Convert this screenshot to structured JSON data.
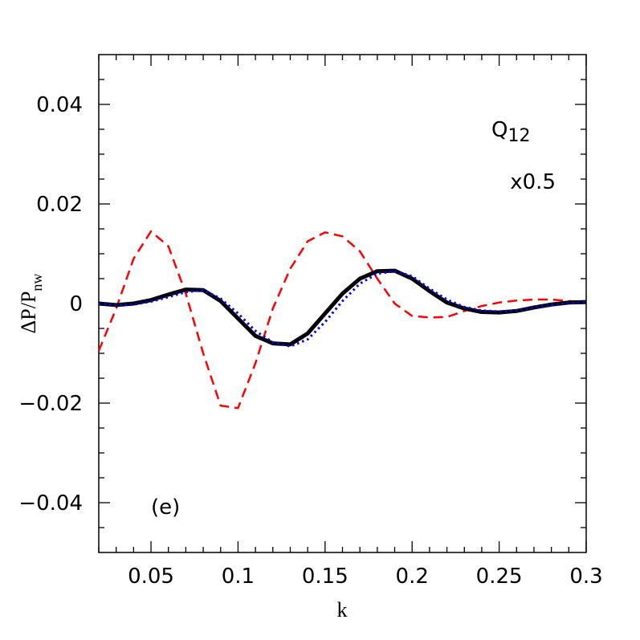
{
  "chart_data": {
    "type": "line",
    "xlabel": "k",
    "ylabel": {
      "main": "ΔP/P",
      "sub": "nw"
    },
    "annotations": {
      "q_main": "Q",
      "q_sub": "12",
      "scale": "x0.5",
      "panel": "(e)"
    },
    "xlim": [
      0.02,
      0.3
    ],
    "ylim": [
      -0.05,
      0.05
    ],
    "xticks": [
      0.05,
      0.1,
      0.15,
      0.2,
      0.25,
      0.3
    ],
    "yticks": [
      {
        "value": -0.04,
        "label": "−0.04"
      },
      {
        "value": -0.02,
        "label": "−0.02"
      },
      0,
      0.02,
      0.04
    ],
    "x_minor_ticks": [
      0.02,
      0.03,
      0.04,
      0.06,
      0.07,
      0.08,
      0.09,
      0.11,
      0.12,
      0.13,
      0.14,
      0.16,
      0.17,
      0.18,
      0.19,
      0.21,
      0.22,
      0.23,
      0.24,
      0.26,
      0.27,
      0.28,
      0.29
    ],
    "y_minor_ticks": [
      -0.045,
      -0.035,
      -0.03,
      -0.025,
      -0.015,
      -0.01,
      -0.005,
      0.005,
      0.01,
      0.015,
      0.025,
      0.03,
      0.035,
      0.045
    ],
    "x": [
      0.02,
      0.03,
      0.04,
      0.05,
      0.06,
      0.07,
      0.08,
      0.09,
      0.1,
      0.11,
      0.12,
      0.13,
      0.14,
      0.15,
      0.16,
      0.17,
      0.18,
      0.19,
      0.2,
      0.21,
      0.22,
      0.23,
      0.24,
      0.25,
      0.26,
      0.27,
      0.28,
      0.29,
      0.3
    ],
    "series": [
      {
        "color": "#ff0000",
        "style": "dashed",
        "width": 2.5,
        "values": [
          -0.0095,
          -0.001,
          0.009,
          0.0145,
          0.0115,
          0.002,
          -0.01,
          -0.0205,
          -0.021,
          -0.012,
          -0.001,
          0.007,
          0.0125,
          0.0143,
          0.0135,
          0.0105,
          0.005,
          0.0,
          -0.0025,
          -0.0028,
          -0.0027,
          -0.0015,
          -0.0005,
          0.0002,
          0.0006,
          0.0008,
          0.0008,
          0.0005,
          0.0003
        ]
      },
      {
        "color": "#000000",
        "style": "solid",
        "width": 5,
        "values": [
          0,
          -0.0003,
          0,
          0.0007,
          0.0018,
          0.0028,
          0.0027,
          0.0005,
          -0.003,
          -0.0065,
          -0.008,
          -0.0082,
          -0.006,
          -0.002,
          0.002,
          0.005,
          0.0065,
          0.0066,
          0.005,
          0.0025,
          0.0002,
          -0.001,
          -0.0017,
          -0.0018,
          -0.0015,
          -0.0008,
          -0.0002,
          0.0002,
          0.0003
        ]
      },
      {
        "color": "#0000ff",
        "style": "dotted",
        "width": 3,
        "values": [
          0,
          -0.0003,
          -0.0002,
          0.0004,
          0.0013,
          0.0023,
          0.0027,
          0.001,
          -0.002,
          -0.0055,
          -0.0078,
          -0.0086,
          -0.0072,
          -0.0037,
          0.0005,
          0.004,
          0.006,
          0.0065,
          0.0055,
          0.003,
          0.0008,
          -0.0007,
          -0.0014,
          -0.0016,
          -0.0014,
          -0.0008,
          -0.0003,
          0.0001,
          0.0003
        ]
      }
    ]
  }
}
